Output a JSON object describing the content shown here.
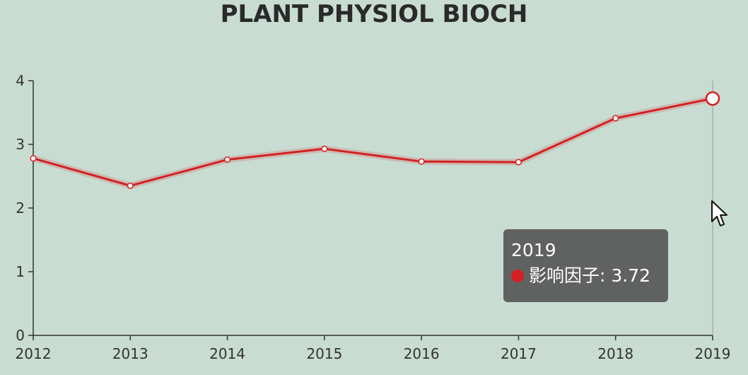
{
  "chart_data": {
    "type": "line",
    "title": "PLANT PHYSIOL BIOCH",
    "categories": [
      "2012",
      "2013",
      "2014",
      "2015",
      "2016",
      "2017",
      "2018",
      "2019"
    ],
    "series": [
      {
        "name": "影响因子",
        "values": [
          2.78,
          2.35,
          2.76,
          2.93,
          2.73,
          2.72,
          3.41,
          3.72
        ],
        "color": "#d42020"
      }
    ],
    "xlabel": "",
    "ylabel": "",
    "ylim": [
      0,
      4
    ],
    "yticks": [
      0,
      1,
      2,
      3,
      4
    ],
    "grid": false,
    "legend": "none"
  },
  "tooltip": {
    "title": "2019",
    "series_name": "影响因子",
    "value": "3.72",
    "label": "影响因子: 3.72",
    "dot_color": "#d42020"
  },
  "icons": {
    "cursor": "mouse-pointer-icon"
  },
  "colors": {
    "background": "#c8dcd2",
    "line": "#d42020",
    "axis": "#333333"
  }
}
